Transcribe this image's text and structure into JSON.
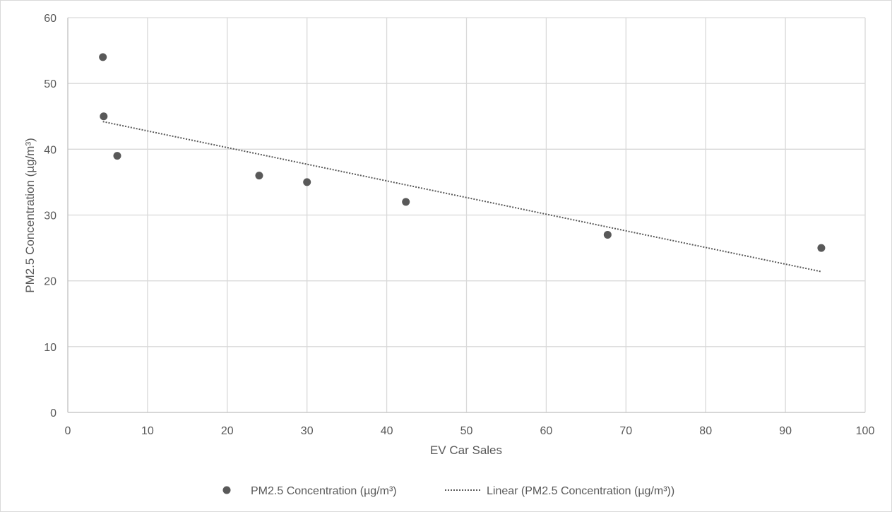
{
  "chart_data": {
    "type": "scatter",
    "title": "",
    "xlabel": "EV Car Sales",
    "ylabel": "PM2.5 Concentration (µg/m³)",
    "xlim": [
      0,
      100
    ],
    "ylim": [
      0,
      60
    ],
    "xticks": [
      0,
      10,
      20,
      30,
      40,
      50,
      60,
      70,
      80,
      90,
      100
    ],
    "yticks": [
      0,
      10,
      20,
      30,
      40,
      50,
      60
    ],
    "grid": true,
    "legend_position": "bottom",
    "series": [
      {
        "name": "PM2.5 Concentration (µg/m³)",
        "marker": "circle",
        "color": "#595959",
        "points": [
          {
            "x": 4.4,
            "y": 54
          },
          {
            "x": 4.5,
            "y": 45
          },
          {
            "x": 6.2,
            "y": 39
          },
          {
            "x": 24.0,
            "y": 36
          },
          {
            "x": 30.0,
            "y": 35
          },
          {
            "x": 42.4,
            "y": 32
          },
          {
            "x": 67.7,
            "y": 27
          },
          {
            "x": 94.5,
            "y": 25
          }
        ]
      }
    ],
    "trendline": {
      "name": "Linear (PM2.5 Concentration (µg/m³))",
      "type": "linear",
      "style": "dotted",
      "color": "#595959",
      "x_start": 4.4,
      "y_start": 44.2,
      "x_end": 94.5,
      "y_end": 21.4
    },
    "colors": {
      "grid": "#d9d9d9",
      "axis": "#bfbfbf",
      "text": "#595959",
      "marker": "#595959"
    }
  }
}
